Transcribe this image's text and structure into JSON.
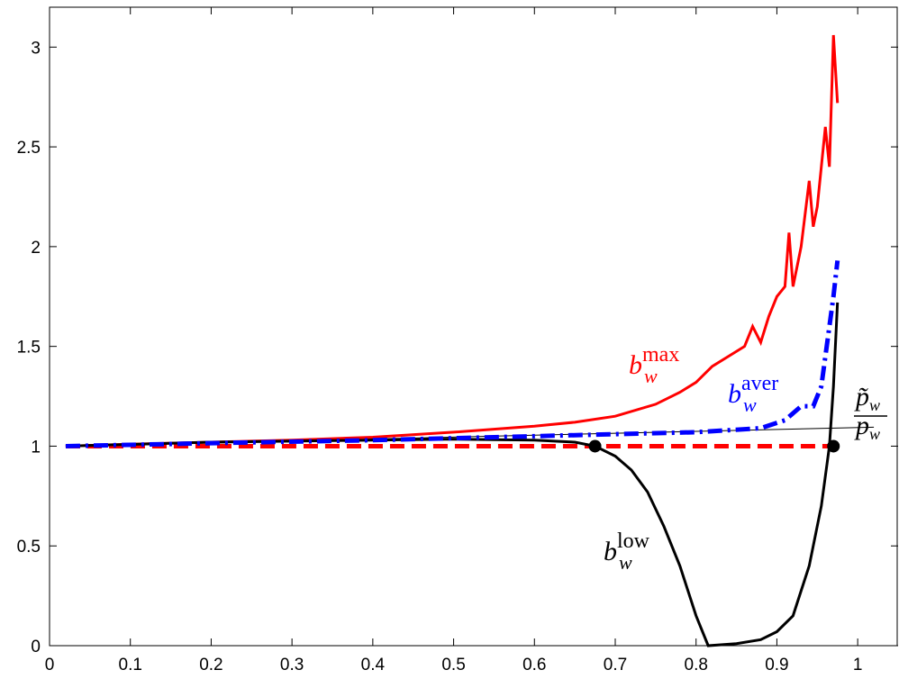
{
  "chart_data": {
    "type": "line",
    "xlim": [
      0,
      1.05
    ],
    "ylim": [
      0,
      3.2
    ],
    "xticks": [
      0,
      0.1,
      0.2,
      0.3,
      0.4,
      0.5,
      0.6,
      0.7,
      0.8,
      0.9,
      1
    ],
    "yticks": [
      0,
      0.5,
      1,
      1.5,
      2,
      2.5,
      3
    ],
    "series": [
      {
        "color": "#ff0000",
        "style": "dashed",
        "width": 5,
        "x": [
          0.02,
          0.975
        ],
        "values": [
          1,
          1
        ]
      },
      {
        "color": "#000000",
        "style": "solid",
        "width": 1,
        "x": [
          0.02,
          1.02
        ],
        "values": [
          1.0,
          1.095
        ]
      },
      {
        "color": "#ff0000",
        "style": "solid",
        "width": 3,
        "x": [
          0.02,
          0.1,
          0.2,
          0.3,
          0.4,
          0.5,
          0.6,
          0.65,
          0.7,
          0.75,
          0.78,
          0.8,
          0.82,
          0.84,
          0.86,
          0.87,
          0.88,
          0.89,
          0.9,
          0.91,
          0.915,
          0.92,
          0.93,
          0.94,
          0.945,
          0.95,
          0.96,
          0.965,
          0.97,
          0.975
        ],
        "values": [
          1.0,
          1.01,
          1.02,
          1.03,
          1.045,
          1.07,
          1.1,
          1.12,
          1.15,
          1.21,
          1.27,
          1.32,
          1.4,
          1.45,
          1.5,
          1.6,
          1.52,
          1.65,
          1.75,
          1.8,
          2.07,
          1.8,
          2.0,
          2.33,
          2.1,
          2.2,
          2.6,
          2.4,
          3.06,
          2.72
        ]
      },
      {
        "color": "#000000",
        "style": "solid",
        "width": 3,
        "x": [
          0.02,
          0.2,
          0.4,
          0.5,
          0.6,
          0.65,
          0.675,
          0.7,
          0.72,
          0.74,
          0.76,
          0.78,
          0.8,
          0.815,
          0.85,
          0.88,
          0.9,
          0.92,
          0.94,
          0.955,
          0.965,
          0.97,
          0.975
        ],
        "values": [
          1.0,
          1.02,
          1.03,
          1.035,
          1.03,
          1.02,
          1.0,
          0.95,
          0.88,
          0.77,
          0.6,
          0.4,
          0.15,
          0.0,
          0.01,
          0.03,
          0.07,
          0.15,
          0.4,
          0.7,
          1.0,
          1.3,
          1.72
        ]
      },
      {
        "color": "#0000ff",
        "style": "dashdot",
        "width": 5,
        "x": [
          0.02,
          0.2,
          0.4,
          0.6,
          0.7,
          0.8,
          0.88,
          0.91,
          0.93,
          0.945,
          0.955,
          0.96,
          0.965,
          0.97,
          0.975
        ],
        "values": [
          1.0,
          1.015,
          1.03,
          1.05,
          1.06,
          1.07,
          1.09,
          1.13,
          1.2,
          1.2,
          1.3,
          1.45,
          1.6,
          1.75,
          1.93
        ]
      }
    ],
    "points": {
      "x": [
        0.675,
        0.97
      ],
      "values": [
        1,
        1
      ],
      "color": "#000000"
    },
    "annotations": [
      {
        "base": "b",
        "sub": "w",
        "sup": "max",
        "color": "#ff0000"
      },
      {
        "base": "b",
        "sub": "w",
        "sup": "aver",
        "color": "#0000ff"
      },
      {
        "base": "b",
        "sub": "w",
        "sup": "low",
        "color": "#000000"
      },
      {
        "numerator": "p̃",
        "denominator": "p",
        "sub": "w",
        "color": "#000000"
      }
    ]
  }
}
